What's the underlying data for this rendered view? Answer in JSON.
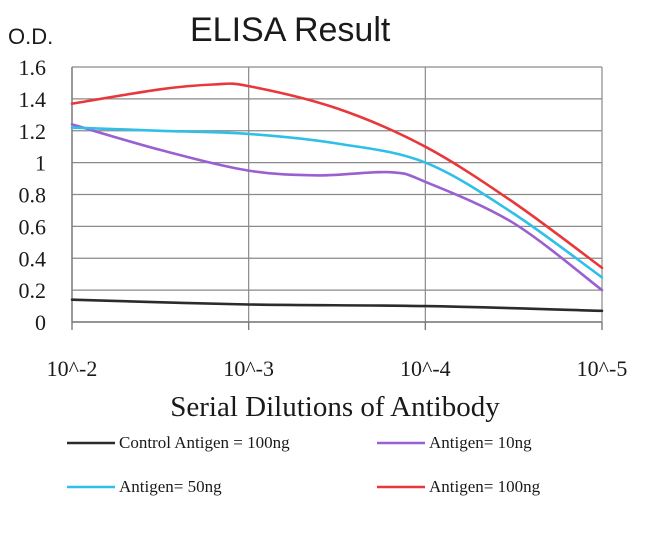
{
  "chart_data": {
    "type": "line",
    "title": "ELISA Result",
    "ylabel": "O.D.",
    "xlabel": "Serial Dilutions of Antibody",
    "x_categories": [
      "10^-2",
      "10^-3",
      "10^-4",
      "10^-5"
    ],
    "y_ticks": [
      "0",
      "0.2",
      "0.4",
      "0.6",
      "0.8",
      "1",
      "1.2",
      "1.4",
      "1.6"
    ],
    "ylim": [
      0,
      1.6
    ],
    "grid": "vertical and horizontal",
    "legend_placement": "bottom",
    "series": [
      {
        "name": "Control Antigen = 100ng",
        "color": "#2b2b2b",
        "points": [
          [
            0,
            0.14
          ],
          [
            1,
            0.11
          ],
          [
            2,
            0.1
          ],
          [
            3,
            0.07
          ]
        ]
      },
      {
        "name": "Antigen= 10ng",
        "color": "#9a5fd1",
        "points": [
          [
            0,
            1.24
          ],
          [
            0.5,
            1.08
          ],
          [
            1,
            0.95
          ],
          [
            1.4,
            0.92
          ],
          [
            1.8,
            0.94
          ],
          [
            2,
            0.88
          ],
          [
            2.5,
            0.62
          ],
          [
            3,
            0.2
          ]
        ]
      },
      {
        "name": "Antigen= 50ng",
        "color": "#2fbfe8",
        "points": [
          [
            0,
            1.22
          ],
          [
            0.5,
            1.2
          ],
          [
            1,
            1.18
          ],
          [
            1.5,
            1.12
          ],
          [
            2,
            1.0
          ],
          [
            2.5,
            0.68
          ],
          [
            3,
            0.28
          ]
        ]
      },
      {
        "name": "Antigen= 100ng",
        "color": "#e8383b",
        "points": [
          [
            0,
            1.37
          ],
          [
            0.5,
            1.46
          ],
          [
            0.8,
            1.49
          ],
          [
            1,
            1.48
          ],
          [
            1.5,
            1.34
          ],
          [
            2,
            1.1
          ],
          [
            2.5,
            0.75
          ],
          [
            3,
            0.34
          ]
        ]
      }
    ]
  }
}
